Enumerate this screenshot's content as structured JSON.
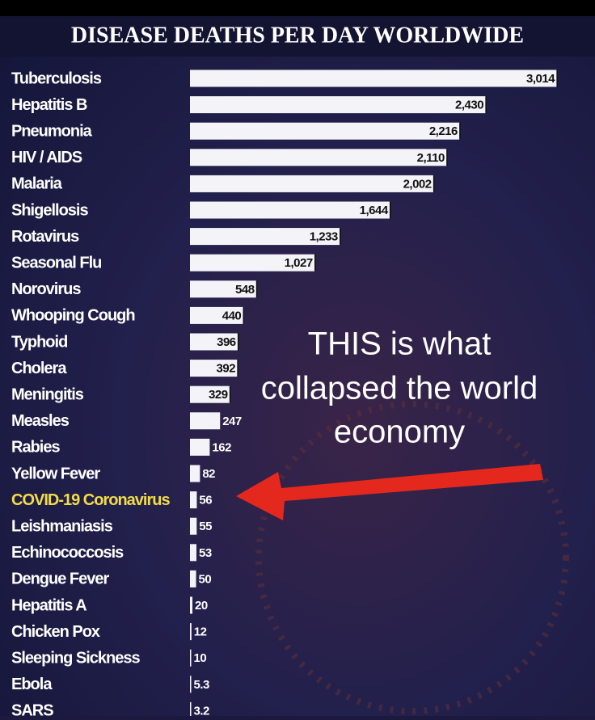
{
  "chart_data": {
    "type": "hbar",
    "title": "DISEASE DEATHS PER DAY WORLDWIDE",
    "categories": [
      "Tuberculosis",
      "Hepatitis B",
      "Pneumonia",
      "HIV / AIDS",
      "Malaria",
      "Shigellosis",
      "Rotavirus",
      "Seasonal Flu",
      "Norovirus",
      "Whooping Cough",
      "Typhoid",
      "Cholera",
      "Meningitis",
      "Measles",
      "Rabies",
      "Yellow Fever",
      "COVID-19 Coronavirus",
      "Leishmaniasis",
      "Echinococcosis",
      "Dengue Fever",
      "Hepatitis A",
      "Chicken Pox",
      "Sleeping Sickness",
      "Ebola",
      "SARS"
    ],
    "values": [
      3014,
      2430,
      2216,
      2110,
      2002,
      1644,
      1233,
      1027,
      548,
      440,
      396,
      392,
      329,
      247,
      162,
      82,
      56,
      55,
      53,
      50,
      20,
      12,
      10,
      5.3,
      3.2
    ],
    "value_labels": [
      "3,014",
      "2,430",
      "2,216",
      "2,110",
      "2,002",
      "1,644",
      "1,233",
      "1,027",
      "548",
      "440",
      "396",
      "392",
      "329",
      "247",
      "162",
      "82",
      "56",
      "55",
      "53",
      "50",
      "20",
      "12",
      "10",
      "5.3",
      "3.2"
    ],
    "label_colors": [
      "#ffffff",
      "#ffffff",
      "#ffffff",
      "#ffffff",
      "#ffffff",
      "#ffffff",
      "#ffffff",
      "#ffffff",
      "#ffffff",
      "#ffffff",
      "#ffffff",
      "#ffffff",
      "#ffffff",
      "#ffffff",
      "#ffffff",
      "#ffffff",
      "#f2dc4a",
      "#ffffff",
      "#ffffff",
      "#ffffff",
      "#ffffff",
      "#ffffff",
      "#ffffff",
      "#ffffff",
      "#ffffff"
    ],
    "color": "#f4f4f8",
    "xlim": [
      0,
      3020
    ],
    "annotation": [
      "THIS is what",
      "collapsed the world",
      "economy"
    ]
  }
}
